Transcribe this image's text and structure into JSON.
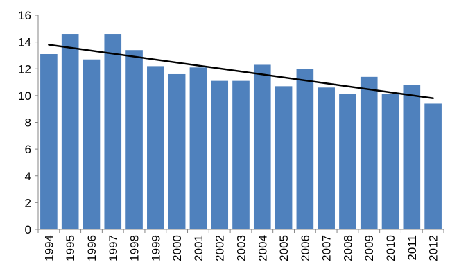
{
  "chart_data": {
    "type": "bar",
    "title": "",
    "xlabel": "",
    "ylabel": "",
    "categories": [
      "1994",
      "1995",
      "1996",
      "1997",
      "1998",
      "1999",
      "2000",
      "2001",
      "2002",
      "2003",
      "2004",
      "2005",
      "2006",
      "2007",
      "2008",
      "2009",
      "2010",
      "2011",
      "2012"
    ],
    "values": [
      13.1,
      14.6,
      12.7,
      14.6,
      13.4,
      12.2,
      11.6,
      12.1,
      11.1,
      11.1,
      12.3,
      10.7,
      12.0,
      10.6,
      10.1,
      11.4,
      10.1,
      10.8,
      9.4
    ],
    "ylim": [
      0,
      16
    ],
    "yticks": [
      0,
      2,
      4,
      6,
      8,
      10,
      12,
      14,
      16
    ],
    "grid": false,
    "legend": "none",
    "bar_color": "#4F81BD",
    "trendline": {
      "type": "linear",
      "start_value": 13.8,
      "end_value": 9.8,
      "color": "#000000"
    }
  }
}
